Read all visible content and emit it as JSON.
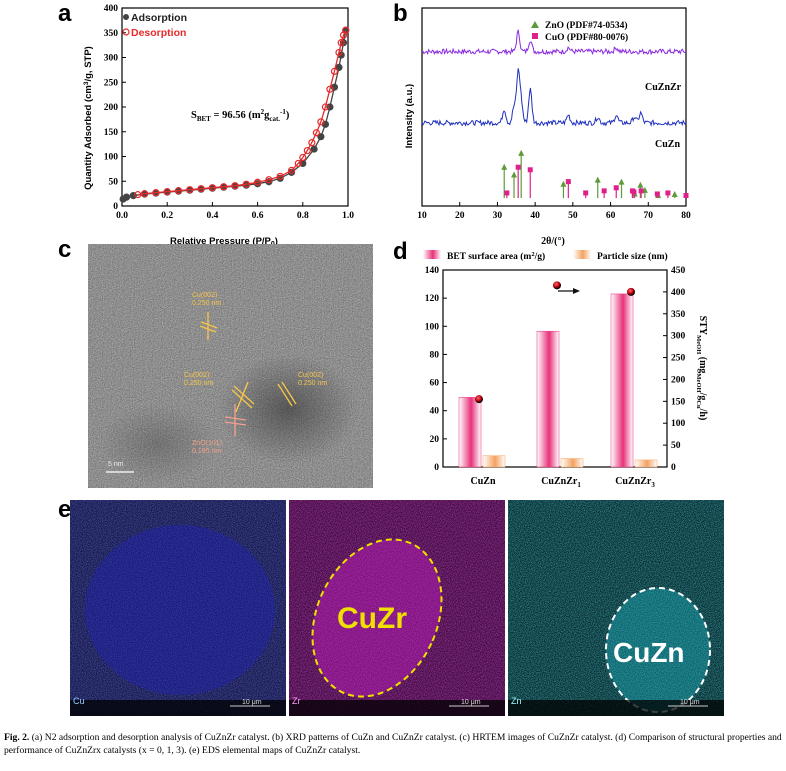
{
  "panels": {
    "a": "a",
    "b": "b",
    "c": "c",
    "d": "d",
    "e": "e"
  },
  "chart_data": [
    {
      "panel": "a",
      "type": "line",
      "title": "",
      "xlabel": "Relative Pressure (P/P0)",
      "ylabel": "Quantity Adsorbed (cm3/g, STP)",
      "xlim": [
        0,
        1.0
      ],
      "ylim": [
        0,
        400
      ],
      "xticks": [
        "0.0",
        "0.2",
        "0.4",
        "0.6",
        "0.8",
        "1.0"
      ],
      "yticks": [
        "0",
        "50",
        "100",
        "150",
        "200",
        "250",
        "300",
        "350",
        "400"
      ],
      "annotation": "S_BET = 96.56 (m2 g_cat.-1)",
      "series": [
        {
          "name": "Adsorption",
          "color": "#444444",
          "x": [
            0.005,
            0.02,
            0.05,
            0.1,
            0.15,
            0.2,
            0.25,
            0.3,
            0.35,
            0.4,
            0.45,
            0.5,
            0.55,
            0.6,
            0.65,
            0.7,
            0.75,
            0.8,
            0.85,
            0.88,
            0.9,
            0.92,
            0.94,
            0.96,
            0.97,
            0.98,
            0.99
          ],
          "y": [
            14,
            18,
            21,
            24,
            26,
            28,
            30,
            32,
            34,
            36,
            38,
            40,
            42,
            45,
            49,
            56,
            68,
            86,
            115,
            140,
            165,
            200,
            240,
            280,
            305,
            330,
            355
          ]
        },
        {
          "name": "Desorption",
          "color": "#e8292a",
          "x": [
            0.99,
            0.98,
            0.97,
            0.96,
            0.94,
            0.92,
            0.9,
            0.88,
            0.86,
            0.84,
            0.82,
            0.8,
            0.78,
            0.75,
            0.7,
            0.65,
            0.6,
            0.55,
            0.5,
            0.45,
            0.4,
            0.35,
            0.3,
            0.25,
            0.2,
            0.15,
            0.1,
            0.07
          ],
          "y": [
            355,
            345,
            330,
            310,
            272,
            236,
            200,
            170,
            148,
            128,
            112,
            98,
            86,
            72,
            60,
            53,
            48,
            44,
            41,
            39,
            37,
            35,
            33,
            31,
            29,
            27,
            25,
            23
          ]
        }
      ]
    },
    {
      "panel": "b",
      "type": "line",
      "xlabel": "2θ/(°)",
      "ylabel": "Intensity (a.u.)",
      "xlim": [
        10,
        80
      ],
      "xticks": [
        "10",
        "20",
        "30",
        "40",
        "50",
        "60",
        "70",
        "80"
      ],
      "legend": [
        {
          "label": "ZnO (PDF#74-0534)",
          "color": "#5e9a3a",
          "marker": "triangle"
        },
        {
          "label": "CuO (PDF#80-0076)",
          "color": "#e0208a",
          "marker": "square"
        }
      ],
      "series": [
        {
          "name": "CuZnZr",
          "color": "#8a2be2",
          "baseline": 0.78,
          "peaks": [
            [
              35.5,
              0.1
            ],
            [
              38.7,
              0.06
            ],
            [
              48.8,
              0.02
            ],
            [
              61.5,
              0.02
            ]
          ]
        },
        {
          "name": "CuZn",
          "color": "#2030c0",
          "baseline": 0.42,
          "peaks": [
            [
              31.8,
              0.07
            ],
            [
              34.4,
              0.08
            ],
            [
              35.5,
              0.25
            ],
            [
              36.3,
              0.1
            ],
            [
              38.7,
              0.17
            ],
            [
              48.8,
              0.04
            ],
            [
              56.6,
              0.03
            ],
            [
              61.5,
              0.04
            ],
            [
              66.3,
              0.03
            ],
            [
              68.0,
              0.05
            ]
          ]
        }
      ],
      "reference_ZnO": [
        [
          31.8,
          0.57
        ],
        [
          34.4,
          0.42
        ],
        [
          36.3,
          0.84
        ],
        [
          47.5,
          0.24
        ],
        [
          56.6,
          0.32
        ],
        [
          62.9,
          0.28
        ],
        [
          66.4,
          0.05
        ],
        [
          67.9,
          0.22
        ],
        [
          69.1,
          0.12
        ],
        [
          72.6,
          0.02
        ],
        [
          77.0,
          0.04
        ]
      ],
      "reference_CuO": [
        [
          32.5,
          0.1
        ],
        [
          35.5,
          0.6
        ],
        [
          38.7,
          0.55
        ],
        [
          48.8,
          0.32
        ],
        [
          53.4,
          0.1
        ],
        [
          58.3,
          0.14
        ],
        [
          61.5,
          0.2
        ],
        [
          65.8,
          0.14
        ],
        [
          66.2,
          0.12
        ],
        [
          68.1,
          0.14
        ],
        [
          72.4,
          0.08
        ],
        [
          75.2,
          0.1
        ],
        [
          80.0,
          0.05
        ]
      ]
    },
    {
      "panel": "d",
      "type": "bar",
      "categories": [
        "CuZn",
        "CuZnZr1",
        "CuZnZr3"
      ],
      "ylabel_left": "",
      "ylabel_right": "STY_MeOH (mg_MeOH/g_Cu/h)",
      "ylim_left": [
        0,
        140
      ],
      "ylim_right": [
        0,
        450
      ],
      "yticks_left": [
        "0",
        "20",
        "40",
        "60",
        "80",
        "100",
        "120",
        "140"
      ],
      "yticks_right": [
        "0",
        "50",
        "100",
        "150",
        "200",
        "250",
        "300",
        "350",
        "400",
        "450"
      ],
      "series": [
        {
          "name": "BET surface area (m2/g)",
          "axis": "left",
          "color": "#e8317a",
          "values": [
            49.5,
            96.5,
            123
          ]
        },
        {
          "name": "Particle size (nm)",
          "axis": "left",
          "color": "#f4a261",
          "values": [
            8,
            6,
            5
          ]
        },
        {
          "name": "STY",
          "axis": "right",
          "color": "#cc1122",
          "values": [
            155,
            415,
            400
          ]
        }
      ]
    }
  ],
  "panel_a": {
    "legend_adsorption": "Adsorption",
    "legend_desorption": "Desorption"
  },
  "panel_b": {
    "curve_label_top": "CuZnZr",
    "curve_label_bottom": "CuZn"
  },
  "panel_c": {
    "labels": [
      "Cu(002)\n0.250 nm",
      "Cu(002)\n0.250 nm",
      "Cu(002)\n0.250 nm",
      "ZnO(101)\n0.195 nm"
    ],
    "scalebar": "5 nm"
  },
  "panel_e": {
    "maps": [
      {
        "element": "Cu",
        "color": "#1c1cb8",
        "tag": "Cu"
      },
      {
        "element": "Zr",
        "color": "#d21fd2",
        "tag": "Zr",
        "overlay": "CuZr"
      },
      {
        "element": "Zn",
        "color": "#1ec4d0",
        "tag": "Zn",
        "overlay": "CuZn"
      }
    ],
    "scalebar": "10 μm"
  },
  "caption": {
    "fig": "Fig. 2.",
    "text": "(a) N2 adsorption and desorption analysis of CuZnZr catalyst. (b) XRD patterns of CuZn and CuZnZr catalyst. (c) HRTEM images of CuZnZr catalyst. (d) Comparison of structural properties and performance of CuZnZrx catalysts (x = 0, 1, 3). (e) EDS elemental maps of CuZnZr catalyst."
  }
}
